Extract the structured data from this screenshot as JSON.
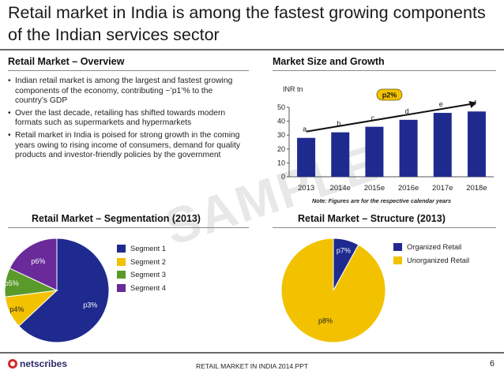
{
  "slide": {
    "title": "Retail market in India is among the fastest growing components of the Indian services sector",
    "watermark": "SAMPLE",
    "page_number": "6",
    "footer_text": "RETAIL MARKET IN INDIA 2014.PPT",
    "logo_text": "netscribes"
  },
  "overview": {
    "heading": "Retail Market – Overview",
    "bullet_glyph": "•",
    "bullets": [
      "Indian retail market is among the largest and fastest growing components of the economy, contributing ~’p1’% to the country’s GDP",
      "Over the last decade, retailing has shifted towards modern formats such as supermarkets and hypermarkets",
      "Retail market in India is poised for strong growth in the coming years owing to rising income of consumers, demand for quality products and investor-friendly policies by the government"
    ]
  },
  "market_size": {
    "heading": "Market Size and Growth",
    "note": "Note: Figures are for the respective calendar years",
    "growth_badge": "p2%"
  },
  "segmentation": {
    "heading": "Retail Market – Segmentation (2013)"
  },
  "structure": {
    "heading": "Retail Market – Structure (2013)"
  },
  "colors": {
    "navy": "#1f2a8f",
    "gold": "#f2c200",
    "green": "#5a9a2a",
    "purple": "#6a2a9a",
    "rule": "#6b6b6b"
  },
  "chart_data": [
    {
      "type": "bar",
      "title": "Market Size and Growth",
      "ylabel": "INR tn",
      "categories": [
        "2013",
        "2014e",
        "2015e",
        "2016e",
        "2017e",
        "2018e"
      ],
      "values": [
        28,
        32,
        36,
        41,
        46,
        47
      ],
      "data_labels": [
        "a",
        "b",
        "c",
        "d",
        "e",
        "f"
      ],
      "ylim": [
        0,
        50
      ],
      "yticks": [
        0,
        10,
        20,
        30,
        40,
        50
      ],
      "annotation": "p2%",
      "grid": false,
      "color": "#1f2a8f"
    },
    {
      "type": "pie",
      "title": "Retail Market – Segmentation (2013)",
      "labels": [
        "Segment 1",
        "Segment 2",
        "Segment 3",
        "Segment 4"
      ],
      "values": [
        63,
        10,
        9,
        18
      ],
      "data_labels": [
        "p3%",
        "p4%",
        "p5%",
        "p6%"
      ],
      "colors": [
        "#1f2a8f",
        "#f2c200",
        "#5a9a2a",
        "#6a2a9a"
      ],
      "legend": "right"
    },
    {
      "type": "pie",
      "title": "Retail Market – Structure (2013)",
      "labels": [
        "Organized Retail",
        "Unorganized Retail"
      ],
      "values": [
        8,
        92
      ],
      "data_labels": [
        "p7%",
        "p8%"
      ],
      "colors": [
        "#1f2a8f",
        "#f2c200"
      ],
      "legend": "right"
    }
  ]
}
